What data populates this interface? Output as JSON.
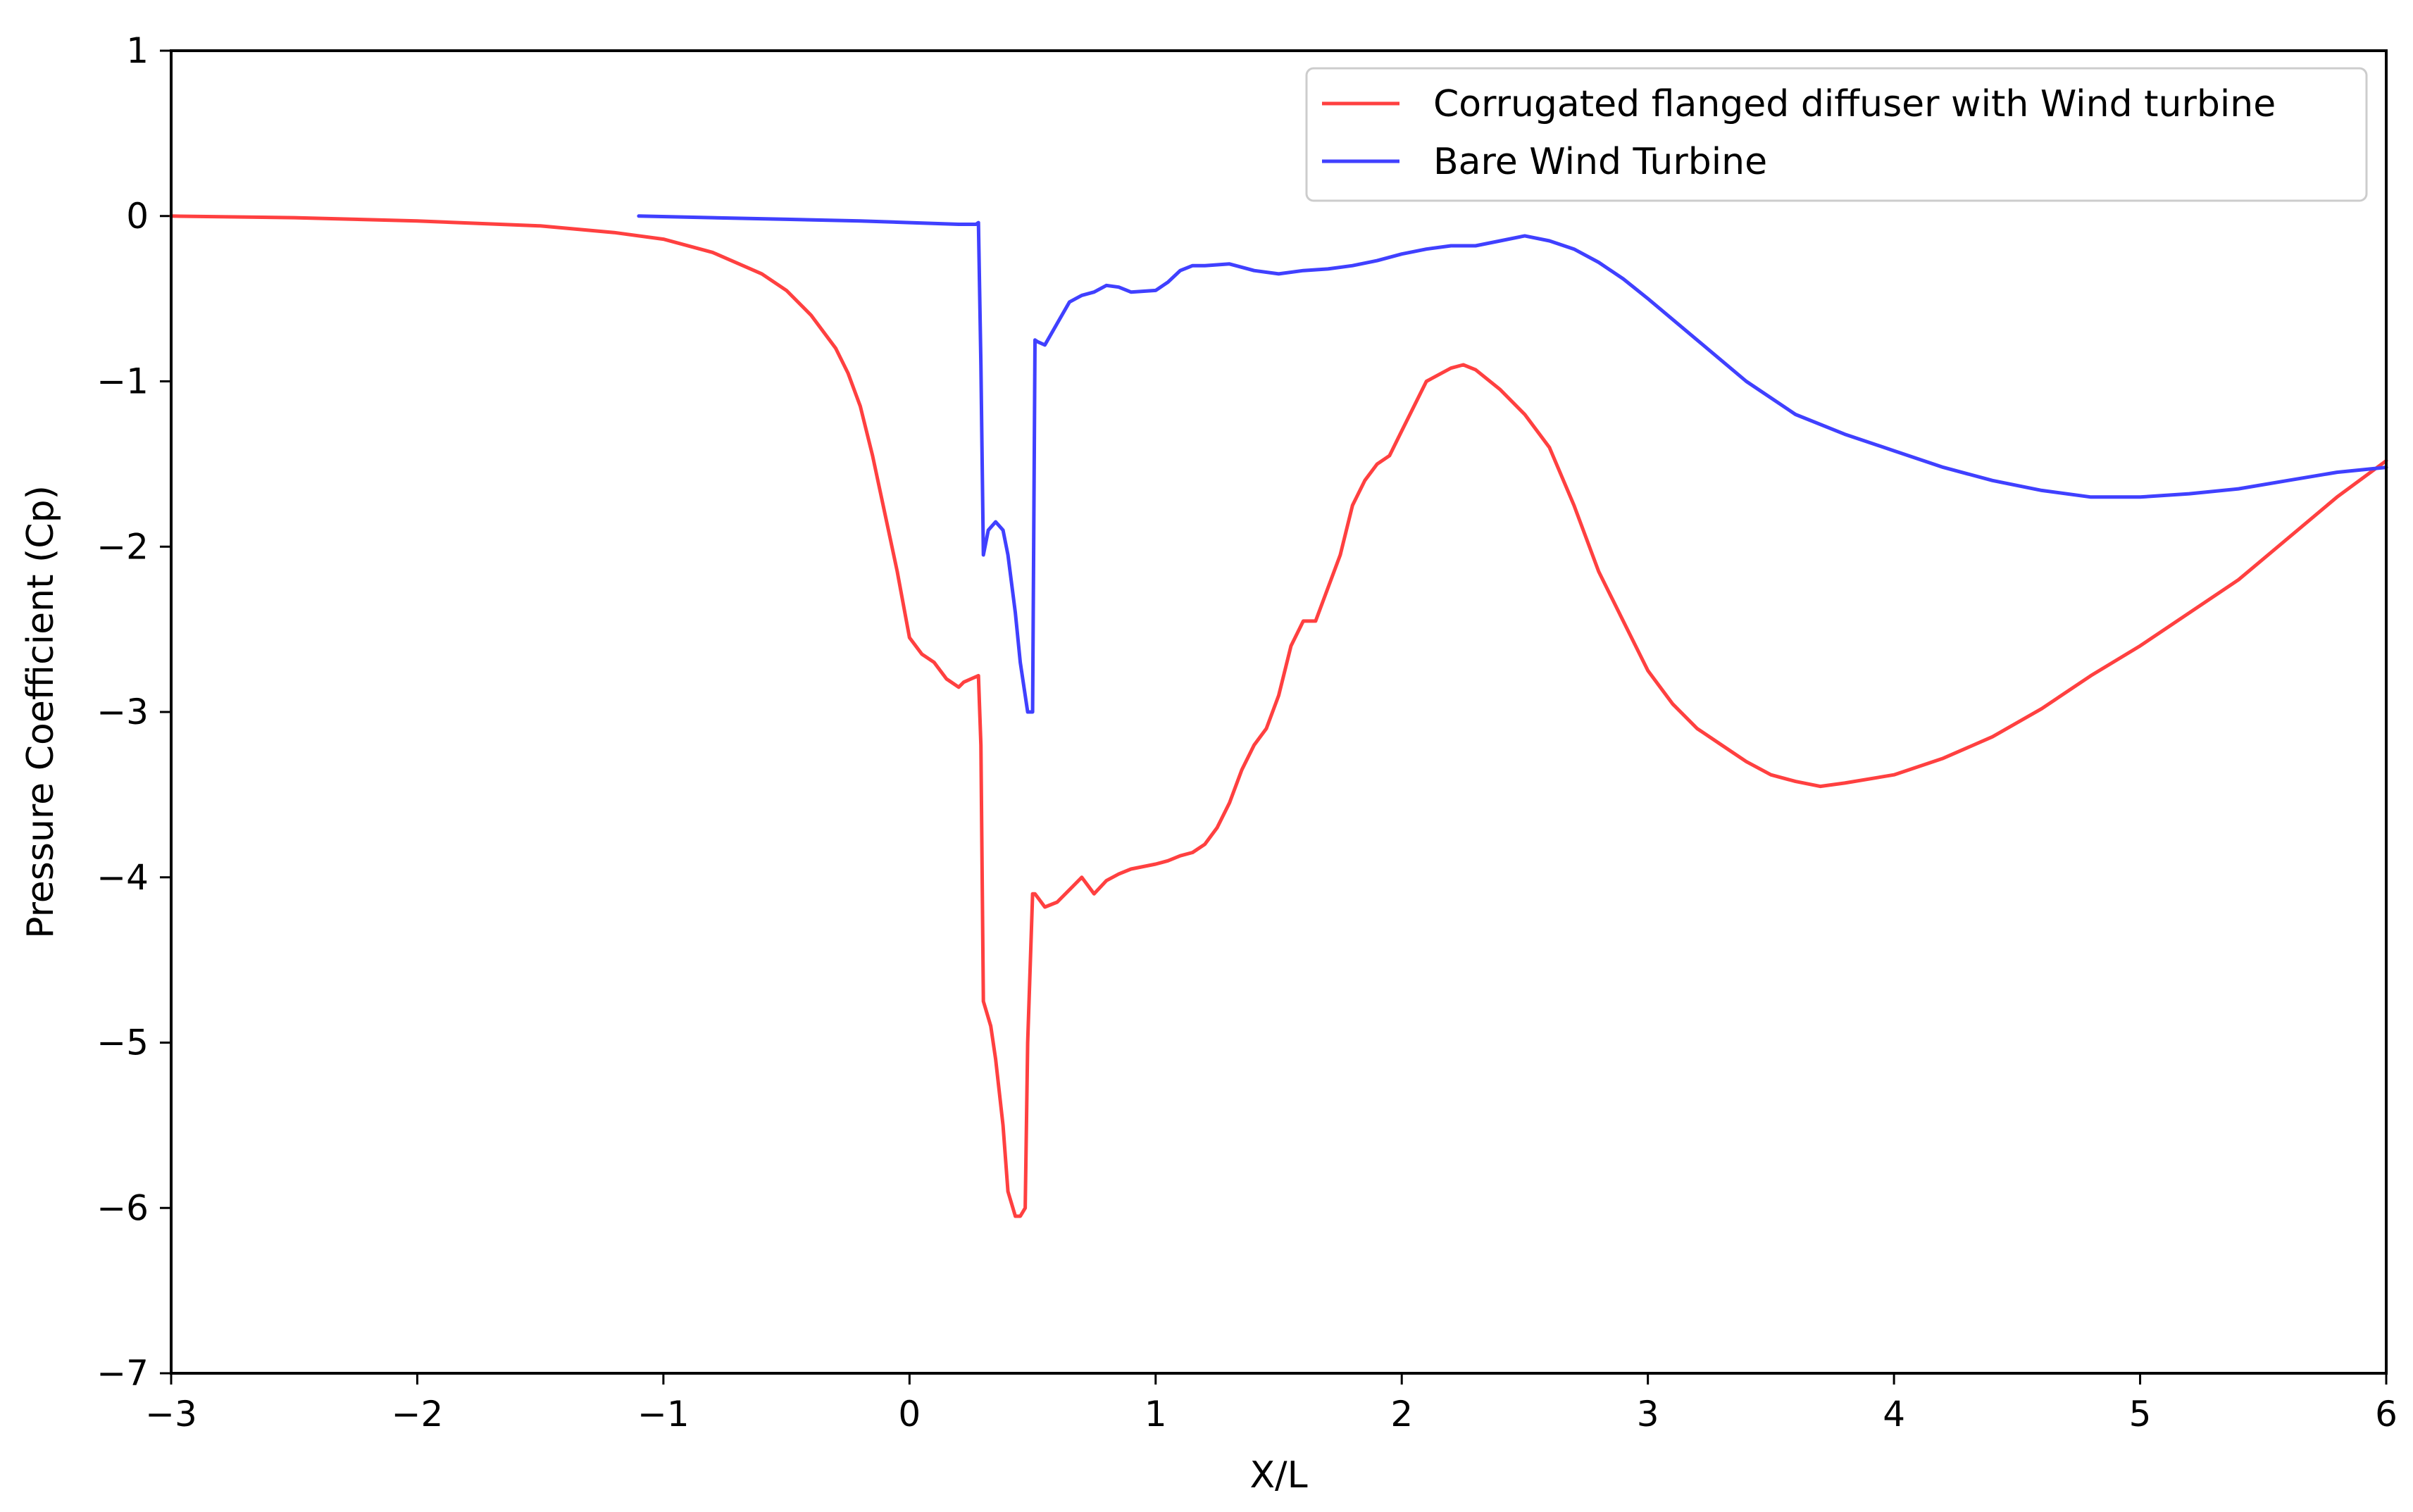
{
  "chart_data": {
    "type": "line",
    "title": "",
    "xlabel": "X/L",
    "ylabel": "Pressure Coefficient (Cp)",
    "xlim": [
      -3,
      6
    ],
    "ylim": [
      -7,
      1
    ],
    "xticks": [
      -3,
      -2,
      -1,
      0,
      1,
      2,
      3,
      4,
      5,
      6
    ],
    "yticks": [
      1,
      0,
      -1,
      -2,
      -3,
      -4,
      -5,
      -6,
      -7
    ],
    "xtick_labels": [
      "−3",
      "−2",
      "−1",
      "0",
      "1",
      "2",
      "3",
      "4",
      "5",
      "6"
    ],
    "ytick_labels": [
      "1",
      "0",
      "−1",
      "−2",
      "−3",
      "−4",
      "−5",
      "−6",
      "−7"
    ],
    "grid": false,
    "legend_position": "top-right",
    "series": [
      {
        "name": "Corrugated flanged diffuser with Wind turbine",
        "color": "#ff4040",
        "x": [
          -3.0,
          -2.5,
          -2.0,
          -1.5,
          -1.2,
          -1.0,
          -0.8,
          -0.6,
          -0.5,
          -0.4,
          -0.3,
          -0.25,
          -0.2,
          -0.15,
          -0.1,
          -0.05,
          0.0,
          0.05,
          0.1,
          0.15,
          0.2,
          0.22,
          0.25,
          0.28,
          0.29,
          0.3,
          0.31,
          0.33,
          0.35,
          0.38,
          0.4,
          0.43,
          0.45,
          0.47,
          0.48,
          0.5,
          0.51,
          0.52,
          0.55,
          0.6,
          0.7,
          0.75,
          0.8,
          0.85,
          0.9,
          1.0,
          1.05,
          1.1,
          1.15,
          1.2,
          1.25,
          1.3,
          1.35,
          1.4,
          1.45,
          1.5,
          1.55,
          1.6,
          1.65,
          1.7,
          1.75,
          1.8,
          1.85,
          1.9,
          1.95,
          2.0,
          2.1,
          2.2,
          2.25,
          2.3,
          2.4,
          2.5,
          2.6,
          2.7,
          2.8,
          2.9,
          3.0,
          3.1,
          3.2,
          3.3,
          3.4,
          3.5,
          3.6,
          3.7,
          3.8,
          4.0,
          4.2,
          4.4,
          4.6,
          4.8,
          5.0,
          5.2,
          5.4,
          5.6,
          5.8,
          6.0
        ],
        "y": [
          0.0,
          -0.01,
          -0.03,
          -0.06,
          -0.1,
          -0.14,
          -0.22,
          -0.35,
          -0.45,
          -0.6,
          -0.8,
          -0.95,
          -1.15,
          -1.45,
          -1.8,
          -2.15,
          -2.55,
          -2.65,
          -2.7,
          -2.8,
          -2.85,
          -2.82,
          -2.8,
          -2.78,
          -3.2,
          -4.75,
          -4.8,
          -4.9,
          -5.1,
          -5.5,
          -5.9,
          -6.05,
          -6.05,
          -6.0,
          -5.0,
          -4.1,
          -4.1,
          -4.12,
          -4.18,
          -4.15,
          -4.0,
          -4.1,
          -4.02,
          -3.98,
          -3.95,
          -3.92,
          -3.9,
          -3.87,
          -3.85,
          -3.8,
          -3.7,
          -3.55,
          -3.35,
          -3.2,
          -3.1,
          -2.9,
          -2.6,
          -2.45,
          -2.45,
          -2.25,
          -2.05,
          -1.75,
          -1.6,
          -1.5,
          -1.45,
          -1.3,
          -1.0,
          -0.92,
          -0.9,
          -0.93,
          -1.05,
          -1.2,
          -1.4,
          -1.75,
          -2.15,
          -2.45,
          -2.75,
          -2.95,
          -3.1,
          -3.2,
          -3.3,
          -3.38,
          -3.42,
          -3.45,
          -3.43,
          -3.38,
          -3.28,
          -3.15,
          -2.98,
          -2.78,
          -2.6,
          -2.4,
          -2.2,
          -1.95,
          -1.7,
          -1.48
        ]
      },
      {
        "name": "Bare Wind Turbine",
        "color": "#4040ff",
        "x": [
          -1.1,
          -0.8,
          -0.5,
          -0.2,
          0.0,
          0.2,
          0.27,
          0.28,
          0.29,
          0.3,
          0.32,
          0.35,
          0.38,
          0.4,
          0.43,
          0.45,
          0.48,
          0.5,
          0.51,
          0.52,
          0.55,
          0.6,
          0.65,
          0.7,
          0.75,
          0.8,
          0.85,
          0.9,
          1.0,
          1.05,
          1.1,
          1.15,
          1.2,
          1.3,
          1.4,
          1.5,
          1.6,
          1.7,
          1.8,
          1.9,
          2.0,
          2.1,
          2.2,
          2.3,
          2.4,
          2.5,
          2.6,
          2.7,
          2.8,
          2.9,
          3.0,
          3.2,
          3.4,
          3.6,
          3.8,
          4.0,
          4.2,
          4.4,
          4.6,
          4.8,
          5.0,
          5.2,
          5.4,
          5.6,
          5.8,
          6.0
        ],
        "y": [
          0.0,
          -0.01,
          -0.02,
          -0.03,
          -0.04,
          -0.05,
          -0.05,
          -0.04,
          -0.9,
          -2.05,
          -1.9,
          -1.85,
          -1.9,
          -2.05,
          -2.4,
          -2.7,
          -3.0,
          -3.0,
          -0.75,
          -0.76,
          -0.78,
          -0.65,
          -0.52,
          -0.48,
          -0.46,
          -0.42,
          -0.43,
          -0.46,
          -0.45,
          -0.4,
          -0.33,
          -0.3,
          -0.3,
          -0.29,
          -0.33,
          -0.35,
          -0.33,
          -0.32,
          -0.3,
          -0.27,
          -0.23,
          -0.2,
          -0.18,
          -0.18,
          -0.15,
          -0.12,
          -0.15,
          -0.2,
          -0.28,
          -0.38,
          -0.5,
          -0.75,
          -1.0,
          -1.2,
          -1.32,
          -1.42,
          -1.52,
          -1.6,
          -1.66,
          -1.7,
          -1.7,
          -1.68,
          -1.65,
          -1.6,
          -1.55,
          -1.52
        ]
      }
    ]
  }
}
